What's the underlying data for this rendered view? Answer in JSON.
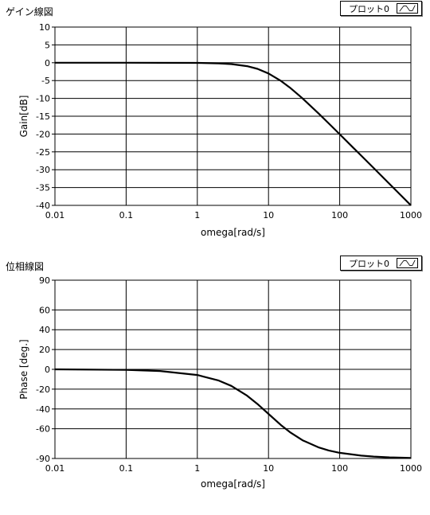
{
  "chart_data": [
    {
      "type": "line",
      "panel_title": "ゲイン線図",
      "legend": {
        "label": "プロット0"
      },
      "xlabel": "omega[rad/s]",
      "ylabel": "Gain[dB]",
      "xscale": "log",
      "xlim": [
        0.01,
        1000
      ],
      "ylim": [
        -40,
        10
      ],
      "x_ticks": [
        "0.01",
        "0.1",
        "1",
        "10",
        "100",
        "1000"
      ],
      "y_ticks": [
        "10",
        "5",
        "0",
        "-5",
        "-10",
        "-15",
        "-20",
        "-25",
        "-30",
        "-35",
        "-40"
      ],
      "grid": true,
      "line_color": "#000000",
      "series": [
        {
          "x": [
            0.01,
            0.1,
            1,
            2,
            3,
            5,
            7,
            10,
            15,
            20,
            30,
            50,
            70,
            100,
            150,
            200,
            300,
            500,
            700,
            1000
          ],
          "y": [
            0,
            0,
            -0.04,
            -0.17,
            -0.37,
            -0.97,
            -1.71,
            -3.01,
            -5.12,
            -6.99,
            -10.0,
            -14.15,
            -17.0,
            -20.04,
            -23.54,
            -26.03,
            -29.54,
            -33.98,
            -36.9,
            -40.0
          ]
        }
      ]
    },
    {
      "type": "line",
      "panel_title": "位相線図",
      "legend": {
        "label": "プロット0"
      },
      "xlabel": "omega[rad/s]",
      "ylabel": "Phase [deg.]",
      "xscale": "log",
      "xlim": [
        0.01,
        1000
      ],
      "ylim": [
        -90,
        90
      ],
      "x_ticks": [
        "0.01",
        "0.1",
        "1",
        "10",
        "100",
        "1000"
      ],
      "y_ticks": [
        "90",
        "60",
        "40",
        "20",
        "0",
        "-20",
        "-40",
        "-60",
        "-90"
      ],
      "grid": true,
      "line_color": "#000000",
      "series": [
        {
          "x": [
            0.01,
            0.1,
            0.3,
            1,
            2,
            3,
            5,
            7,
            10,
            15,
            20,
            30,
            50,
            70,
            100,
            200,
            300,
            500,
            1000
          ],
          "y": [
            0,
            -0.6,
            -1.7,
            -5.7,
            -11.3,
            -16.7,
            -26.6,
            -35.0,
            -45.0,
            -56.3,
            -63.4,
            -71.6,
            -78.7,
            -81.9,
            -84.3,
            -87.1,
            -88.1,
            -88.9,
            -89.4
          ]
        }
      ]
    }
  ]
}
